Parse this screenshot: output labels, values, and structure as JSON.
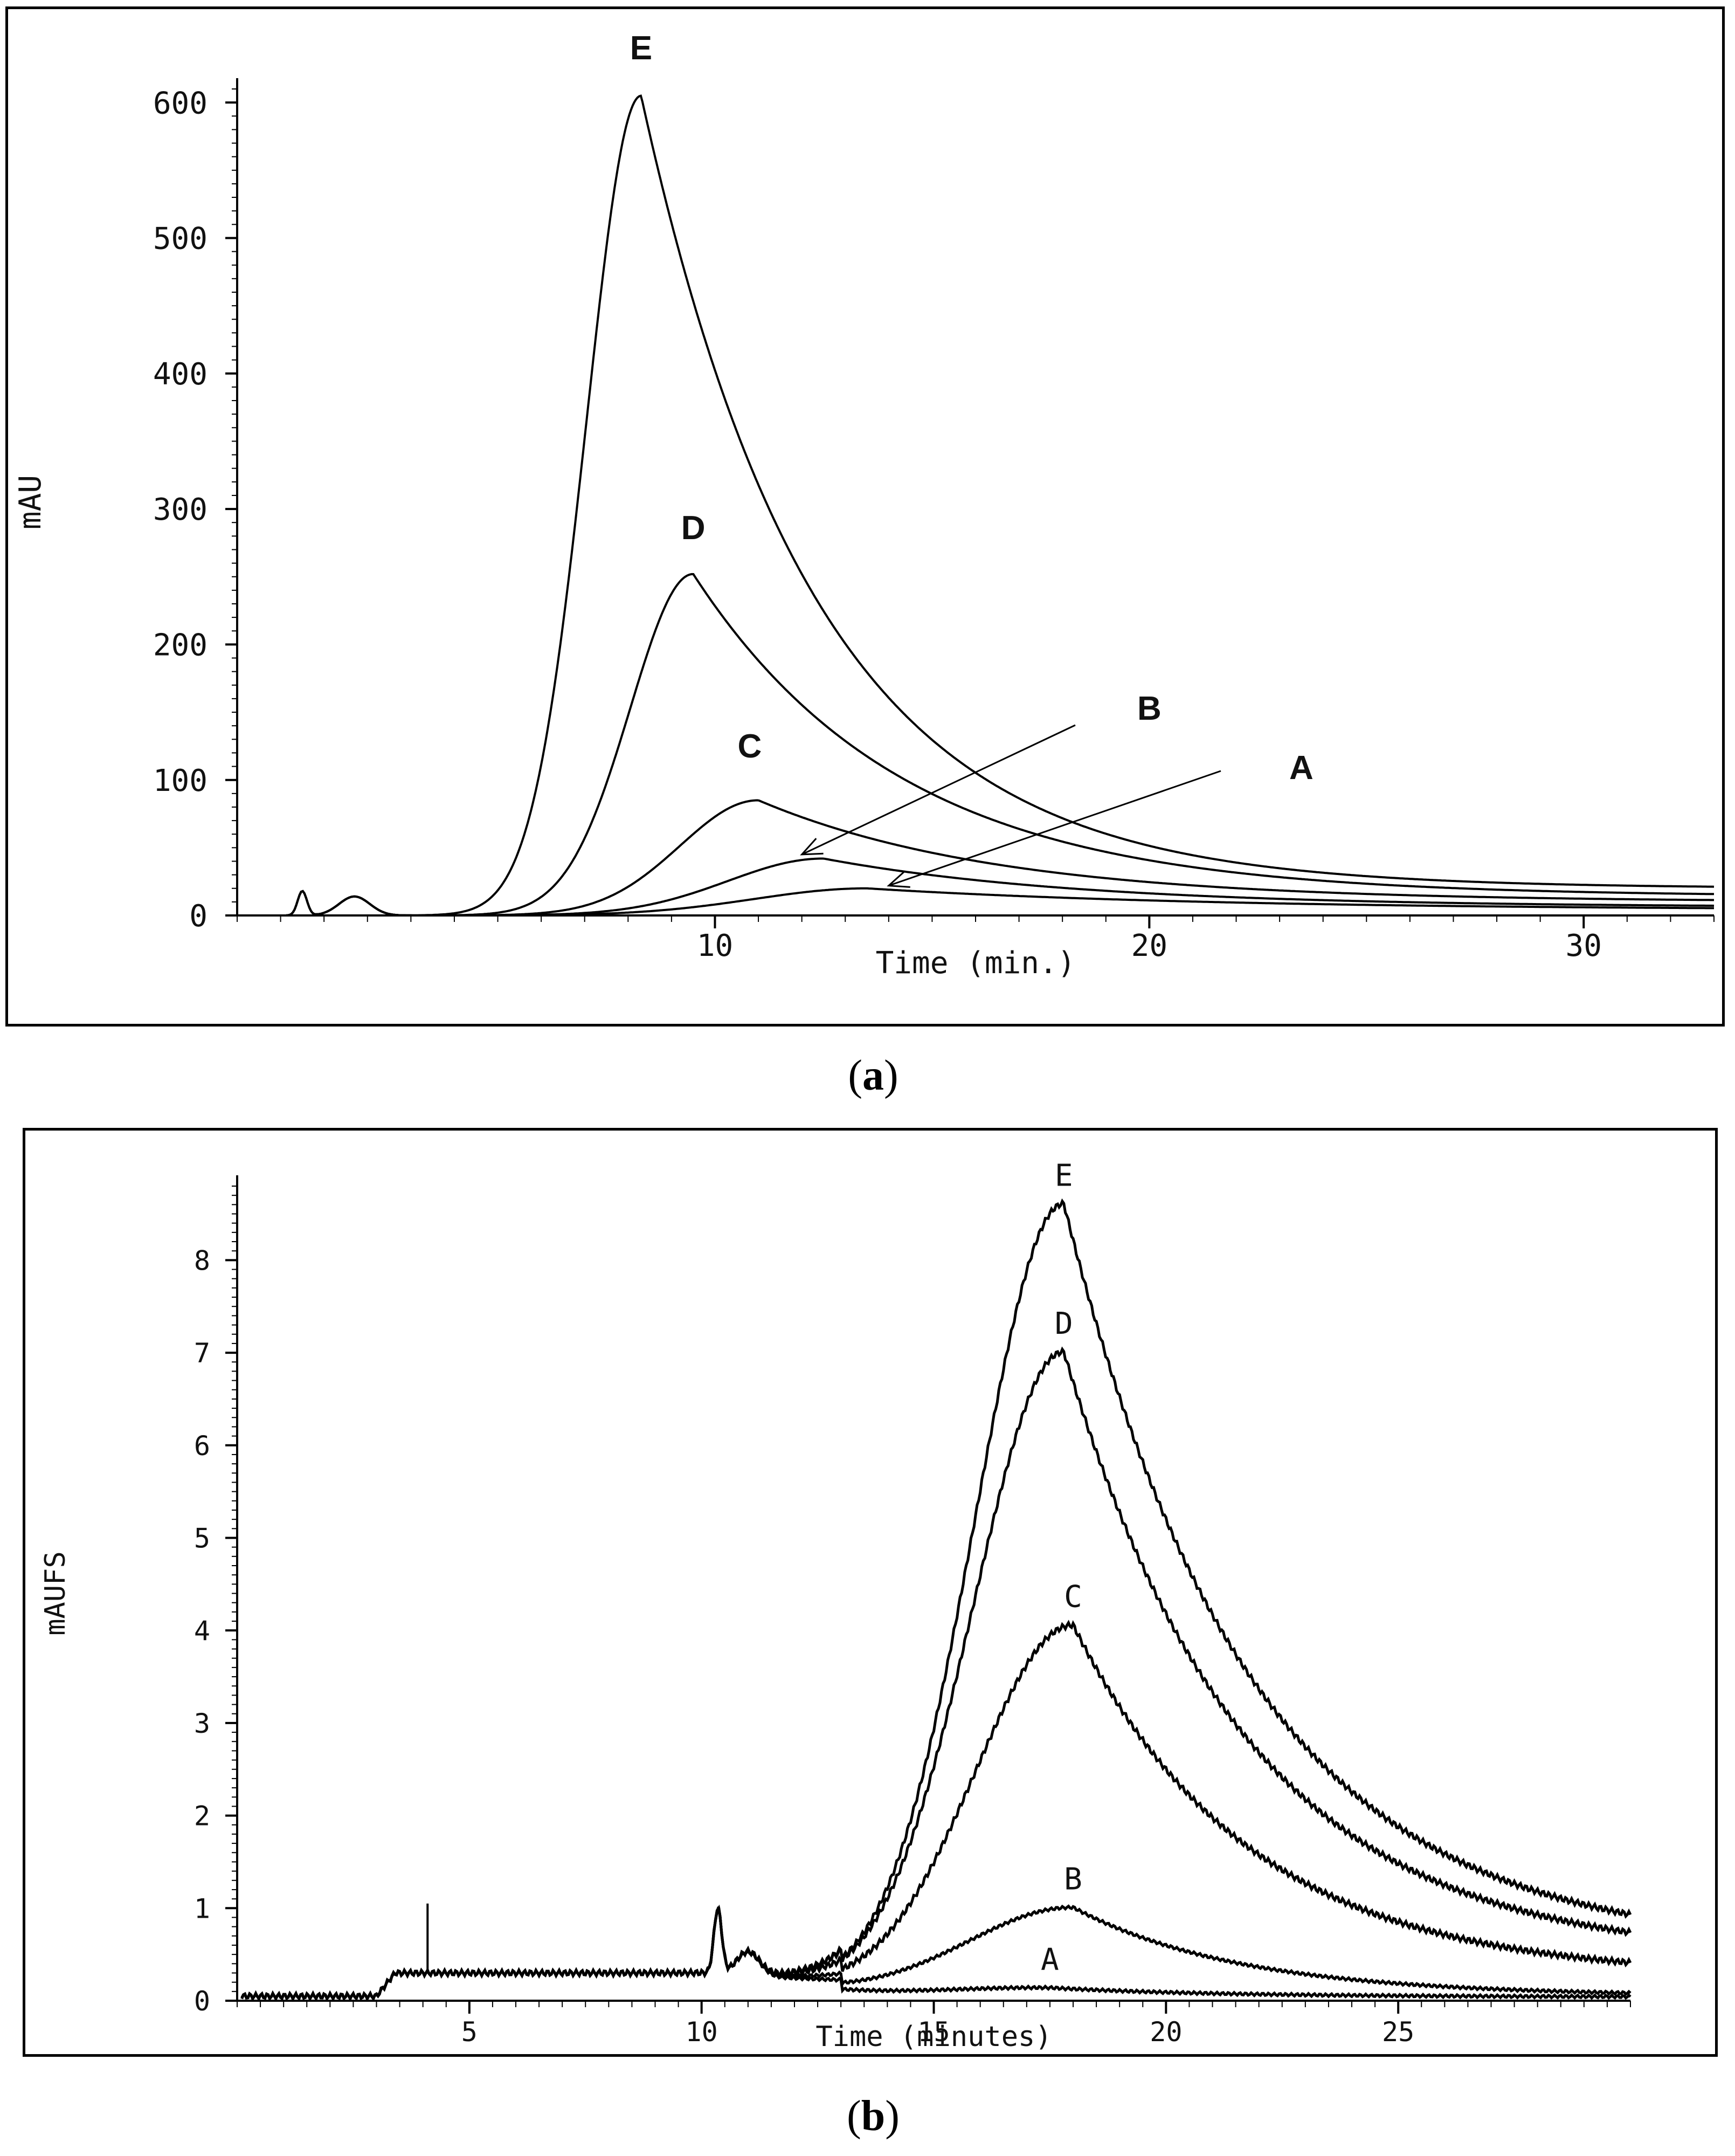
{
  "captions": {
    "a": "a",
    "b": "b"
  },
  "chart_data": [
    {
      "type": "line",
      "panel": "a",
      "title": "",
      "xlabel": "Time (min.)",
      "ylabel": "mAU",
      "xlim": [
        -1,
        33
      ],
      "ylim": [
        0,
        610
      ],
      "xticks": [
        10,
        20,
        30
      ],
      "yticks": [
        0,
        100,
        200,
        300,
        400,
        500,
        600
      ],
      "series": [
        {
          "name": "E",
          "label": "E",
          "peak": 605,
          "peak_x": 8.3,
          "rise": 1.25,
          "decay": 4.0,
          "tail": 20
        },
        {
          "name": "D",
          "label": "D",
          "peak": 252,
          "peak_x": 9.5,
          "rise": 1.45,
          "decay": 4.8,
          "tail": 14
        },
        {
          "name": "C",
          "label": "C",
          "peak": 85,
          "peak_x": 11.0,
          "rise": 1.8,
          "decay": 5.5,
          "tail": 10
        },
        {
          "name": "B",
          "label": "B",
          "peak": 42,
          "peak_x": 12.5,
          "rise": 2.2,
          "decay": 6.0,
          "tail": 6
        },
        {
          "name": "A",
          "label": "A",
          "peak": 20,
          "peak_x": 13.5,
          "rise": 2.6,
          "decay": 8.0,
          "tail": 4
        }
      ]
    },
    {
      "type": "line",
      "panel": "b",
      "title": "",
      "xlabel": "Time (minutes)",
      "ylabel": "mAUFS",
      "xlim": [
        0,
        30
      ],
      "ylim": [
        0,
        8.8
      ],
      "xticks": [
        5,
        10,
        15,
        20,
        25
      ],
      "yticks": [
        0,
        1,
        2,
        3,
        4,
        5,
        6,
        7,
        8
      ],
      "series": [
        {
          "name": "E",
          "label": "E",
          "peak": 8.6,
          "peak_x": 17.8,
          "rise": 1.9,
          "decay": 4.0,
          "tail": 0.55
        },
        {
          "name": "D",
          "label": "D",
          "peak": 7.0,
          "peak_x": 17.8,
          "rise": 1.95,
          "decay": 3.9,
          "tail": 0.45
        },
        {
          "name": "C",
          "label": "C",
          "peak": 4.05,
          "peak_x": 18.0,
          "rise": 2.1,
          "decay": 3.8,
          "tail": 0.25
        },
        {
          "name": "B",
          "label": "B",
          "peak": 1.0,
          "peak_x": 18.0,
          "rise": 2.3,
          "decay": 3.6,
          "tail": 0.05
        },
        {
          "name": "A",
          "label": "A",
          "peak": 0.13,
          "peak_x": 17.5,
          "rise": 2.5,
          "decay": 4.0,
          "tail": 0.04
        }
      ]
    }
  ]
}
